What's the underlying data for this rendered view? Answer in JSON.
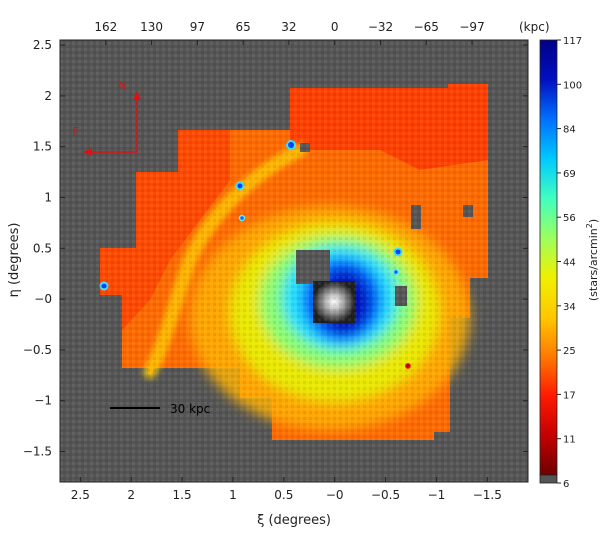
{
  "chart_data": {
    "type": "heatmap",
    "title": "",
    "xlabel": "ξ (degrees)",
    "ylabel": "η (degrees)",
    "x_axis_reversed": true,
    "xlim": [
      2.7,
      -1.9
    ],
    "ylim": [
      -1.8,
      2.55
    ],
    "x_ticks": [
      2.5,
      2,
      1.5,
      1,
      0.5,
      0,
      -0.5,
      -1,
      -1.5
    ],
    "x_tick_labels": [
      "2.5",
      "2",
      "1.5",
      "1",
      "0.5",
      "−0",
      "−0.5",
      "−1",
      "−1.5"
    ],
    "y_ticks": [
      2.5,
      2,
      1.5,
      1,
      0.5,
      0,
      -0.5,
      -1,
      -1.5
    ],
    "y_tick_labels": [
      "2.5",
      "2",
      "1.5",
      "1",
      "0.5",
      "−0",
      "−0.5",
      "−1",
      "−1.5"
    ],
    "top_axis": {
      "label": "(kpc)",
      "ticks_deg": [
        2.25,
        1.8,
        1.35,
        0.9,
        0.45,
        0,
        -0.45,
        -0.9,
        -1.35
      ],
      "tick_labels": [
        "162",
        "130",
        "97",
        "65",
        "32",
        "0",
        "−32",
        "−65",
        "−97"
      ]
    },
    "colorbar": {
      "label": "(stars/arcmin²)",
      "label_main": "(stars/arcmin",
      "label_sup": "2",
      "label_close": ")",
      "tick_values": [
        117,
        100,
        84,
        69,
        56,
        44,
        34,
        25,
        17,
        11,
        6
      ],
      "tick_labels": [
        "117",
        "100",
        "84",
        "69",
        "56",
        "44",
        "34",
        "25",
        "17",
        "11",
        "6"
      ],
      "colors": [
        "#6e0000",
        "#c40000",
        "#ff1a00",
        "#ff7a00",
        "#ffc800",
        "#f0f000",
        "#9cff60",
        "#40ffc0",
        "#00c8ff",
        "#0070ff",
        "#0010c0",
        "#000088"
      ],
      "nodata_color": "#555555"
    },
    "annotations": {
      "compass_north": "N",
      "compass_east": "E",
      "scale_bar": "30 kpc",
      "compass_color": "#e01010"
    },
    "background_color": "#555555",
    "features": [
      "galaxy center",
      "giant stellar stream",
      "diffuse halo"
    ]
  }
}
